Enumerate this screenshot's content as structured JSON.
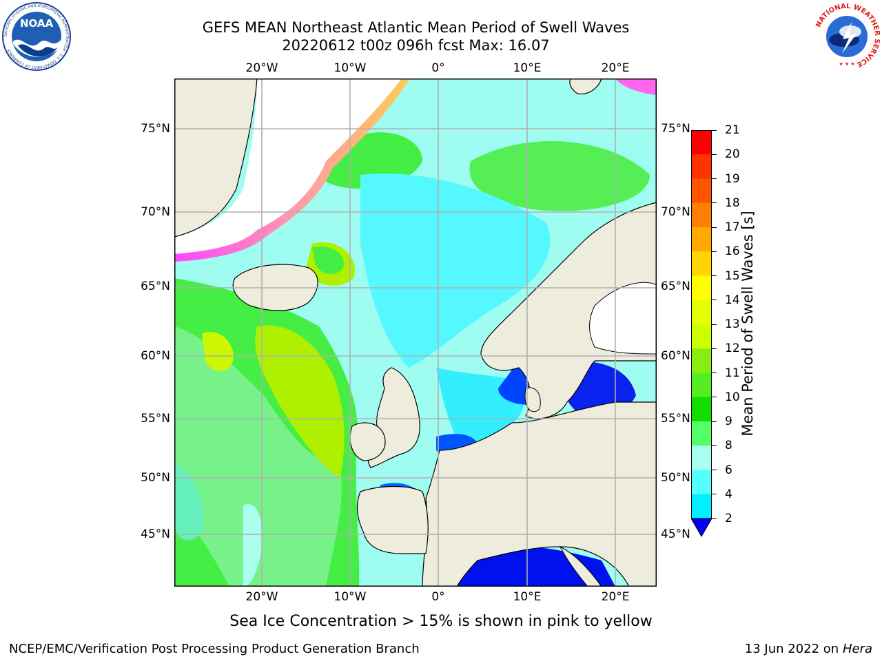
{
  "header": {
    "title_line1": "GEFS MEAN Northeast Atlantic Mean Period of Swell Waves",
    "title_line2": "20220612 t00z 096h fcst   Max: 16.07"
  },
  "logos": {
    "left_name": "NOAA",
    "left_ring_text": "NATIONAL OCEANIC AND ATMOSPHERIC ADMINISTRATION · U.S. DEPARTMENT OF COMMERCE",
    "right_ring_text": "NATIONAL WEATHER SERVICE"
  },
  "map": {
    "lon_labels": [
      "20°W",
      "10°W",
      "0°",
      "10°E",
      "20°E"
    ],
    "top_lon_labels": [
      "20°W",
      "10°W",
      "0°",
      "10°E",
      "20°E"
    ],
    "lat_labels": [
      "75°N",
      "70°N",
      "65°N",
      "60°N",
      "55°N",
      "50°N",
      "45°N"
    ],
    "colors": {
      "land": "#eeecdc",
      "sea_ice": "#ffffff",
      "grid": "#b0b0b0"
    }
  },
  "colorbar": {
    "label": "Mean Period of Swell Waves [s]",
    "ticks": [
      "21",
      "20",
      "19",
      "18",
      "17",
      "16",
      "15",
      "14",
      "13",
      "12",
      "11",
      "10",
      "9",
      "8",
      "6",
      "4",
      "2"
    ],
    "colors": [
      "#ff0000",
      "#ff3300",
      "#ff5500",
      "#ff8000",
      "#ffaa00",
      "#ffd400",
      "#ffff00",
      "#e5ff00",
      "#ccff00",
      "#88ee11",
      "#55ee22",
      "#11dd00",
      "#55ff66",
      "#aaffee",
      "#55ffff",
      "#00f0ff",
      "#00b0ff",
      "#0055ff",
      "#0000ee"
    ]
  },
  "caption": "Sea Ice Concentration > 15% is shown in pink to yellow",
  "footer": {
    "left": "NCEP/EMC/Verification Post Processing Product Generation Branch",
    "right_date": "13 Jun 2022 on",
    "right_machine": "Hera"
  }
}
